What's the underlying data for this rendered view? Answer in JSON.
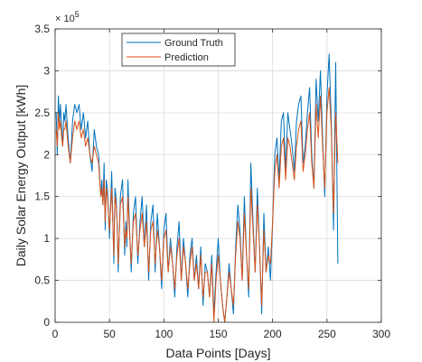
{
  "chart_data": {
    "type": "line",
    "title": "",
    "xlabel": "Data Points [Days]",
    "ylabel": "Daily Solar Energy Output [kWh]",
    "y_exponent_label": "× 10",
    "y_exponent_power": "5",
    "xlim": [
      0,
      300
    ],
    "ylim": [
      0,
      3.5
    ],
    "xticks": [
      0,
      50,
      100,
      150,
      200,
      250,
      300
    ],
    "yticks": [
      0,
      0.5,
      1,
      1.5,
      2,
      2.5,
      3,
      3.5
    ],
    "grid": true,
    "legend": "top-left",
    "series": [
      {
        "name": "Ground Truth",
        "color": "#0072BD",
        "x": [
          1,
          2,
          3,
          4,
          5,
          6,
          7,
          8,
          9,
          10,
          12,
          14,
          16,
          18,
          20,
          22,
          24,
          26,
          28,
          30,
          32,
          34,
          36,
          38,
          40,
          42,
          43,
          44,
          45,
          46,
          47,
          48,
          50,
          52,
          54,
          55,
          56,
          57,
          58,
          60,
          62,
          64,
          65,
          66,
          67,
          68,
          70,
          72,
          74,
          76,
          78,
          80,
          82,
          84,
          86,
          88,
          90,
          92,
          94,
          96,
          98,
          100,
          102,
          104,
          106,
          108,
          110,
          112,
          114,
          116,
          118,
          120,
          122,
          124,
          126,
          128,
          130,
          132,
          134,
          136,
          138,
          140,
          142,
          144,
          146,
          148,
          150,
          152,
          154,
          156,
          158,
          160,
          162,
          164,
          166,
          168,
          170,
          172,
          174,
          176,
          178,
          180,
          182,
          184,
          186,
          188,
          190,
          192,
          194,
          196,
          198,
          200,
          202,
          204,
          206,
          208,
          210,
          212,
          214,
          216,
          218,
          220,
          222,
          224,
          226,
          228,
          230,
          232,
          234,
          236,
          238,
          240,
          242,
          244,
          246,
          248,
          250,
          252,
          254,
          256,
          258,
          260
        ],
        "y": [
          2.5,
          2.0,
          2.7,
          2.4,
          2.6,
          2.3,
          2.1,
          2.5,
          2.4,
          2.6,
          2.2,
          1.9,
          2.4,
          2.6,
          2.5,
          2.6,
          2.3,
          2.5,
          2.2,
          2.4,
          2.0,
          1.8,
          2.3,
          2.1,
          2.0,
          1.5,
          1.7,
          1.4,
          1.9,
          1.1,
          1.7,
          1.6,
          1.0,
          1.8,
          0.7,
          1.6,
          1.5,
          1.2,
          0.6,
          1.5,
          1.7,
          0.8,
          1.2,
          0.9,
          1.7,
          1.3,
          0.6,
          1.3,
          1.5,
          0.7,
          1.2,
          1.5,
          0.9,
          1.4,
          0.5,
          1.2,
          1.4,
          0.6,
          1.3,
          0.9,
          0.4,
          1.1,
          1.3,
          0.6,
          1.0,
          0.7,
          0.3,
          0.9,
          1.2,
          0.5,
          1.0,
          0.7,
          0.3,
          0.8,
          1.0,
          0.5,
          0.8,
          0.4,
          0.9,
          0.2,
          0.7,
          0.6,
          0.3,
          0.8,
          0.1,
          0.6,
          1.0,
          0.5,
          0.2,
          0.0,
          0.3,
          0.7,
          0.4,
          0.1,
          0.9,
          1.4,
          1.1,
          0.5,
          1.5,
          0.8,
          0.3,
          1.9,
          1.2,
          0.6,
          1.6,
          0.9,
          0.1,
          1.3,
          0.6,
          0.9,
          0.5,
          1.2,
          2.0,
          2.2,
          1.7,
          2.4,
          2.5,
          1.8,
          2.5,
          2.3,
          2.1,
          1.8,
          2.4,
          2.6,
          2.7,
          1.9,
          2.1,
          2.5,
          2.8,
          2.0,
          1.6,
          2.9,
          2.4,
          3.0,
          2.2,
          1.5,
          2.7,
          3.2,
          2.4,
          1.1,
          3.1,
          0.7
        ]
      },
      {
        "name": "Prediction",
        "color": "#D95319",
        "x": [
          1,
          2,
          3,
          4,
          5,
          6,
          7,
          8,
          9,
          10,
          12,
          14,
          16,
          18,
          20,
          22,
          24,
          26,
          28,
          30,
          32,
          34,
          36,
          38,
          40,
          42,
          43,
          44,
          45,
          46,
          47,
          48,
          50,
          52,
          54,
          55,
          56,
          57,
          58,
          60,
          62,
          64,
          65,
          66,
          67,
          68,
          70,
          72,
          74,
          76,
          78,
          80,
          82,
          84,
          86,
          88,
          90,
          92,
          94,
          96,
          98,
          100,
          102,
          104,
          106,
          108,
          110,
          112,
          114,
          116,
          118,
          120,
          122,
          124,
          126,
          128,
          130,
          132,
          134,
          136,
          138,
          140,
          142,
          144,
          146,
          148,
          150,
          152,
          154,
          156,
          158,
          160,
          162,
          164,
          166,
          168,
          170,
          172,
          174,
          176,
          178,
          180,
          182,
          184,
          186,
          188,
          190,
          192,
          194,
          196,
          198,
          200,
          202,
          204,
          206,
          208,
          210,
          212,
          214,
          216,
          218,
          220,
          222,
          224,
          226,
          228,
          230,
          232,
          234,
          236,
          238,
          240,
          242,
          244,
          246,
          248,
          250,
          252,
          254,
          256,
          258,
          260
        ],
        "y": [
          2.3,
          2.1,
          2.5,
          2.3,
          2.4,
          2.2,
          2.1,
          2.3,
          2.3,
          2.4,
          2.1,
          1.9,
          2.2,
          2.4,
          2.3,
          2.4,
          2.2,
          2.3,
          2.1,
          2.2,
          2.0,
          1.9,
          2.1,
          2.0,
          1.9,
          1.5,
          1.6,
          1.4,
          1.7,
          1.2,
          1.6,
          1.5,
          1.1,
          1.6,
          0.8,
          1.5,
          1.4,
          1.2,
          0.7,
          1.4,
          1.5,
          0.9,
          1.1,
          1.0,
          1.5,
          1.2,
          0.7,
          1.2,
          1.3,
          0.8,
          1.1,
          1.3,
          0.9,
          1.2,
          0.6,
          1.1,
          1.2,
          0.7,
          1.1,
          0.9,
          0.5,
          1.0,
          1.1,
          0.6,
          0.9,
          0.7,
          0.4,
          0.8,
          1.0,
          0.5,
          0.9,
          0.7,
          0.4,
          0.7,
          0.9,
          0.5,
          0.7,
          0.4,
          0.8,
          0.3,
          0.6,
          0.6,
          0.3,
          0.7,
          0.0,
          0.5,
          0.8,
          0.5,
          0.2,
          0.0,
          0.3,
          0.6,
          0.4,
          0.2,
          0.8,
          1.2,
          1.0,
          0.5,
          1.3,
          0.8,
          0.4,
          1.6,
          1.1,
          0.6,
          1.4,
          0.9,
          0.2,
          1.1,
          0.6,
          0.8,
          0.7,
          1.2,
          1.8,
          2.0,
          1.6,
          2.1,
          2.2,
          1.7,
          2.2,
          2.1,
          1.9,
          1.7,
          2.1,
          2.3,
          2.4,
          1.8,
          2.0,
          2.3,
          2.5,
          1.9,
          1.6,
          2.6,
          2.2,
          2.7,
          2.1,
          1.6,
          2.5,
          2.8,
          2.3,
          1.3,
          2.5,
          1.9
        ]
      }
    ]
  }
}
